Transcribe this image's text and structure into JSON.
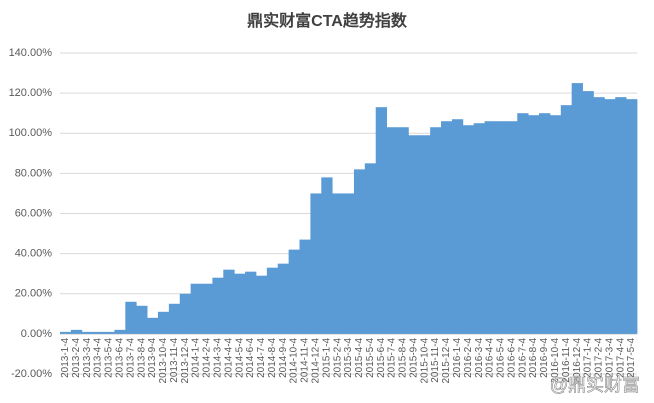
{
  "chart_data": {
    "type": "bar",
    "title": "鼎实财富CTA趋势指数",
    "watermark": "@鼎实财富",
    "categories": [
      "2013-1-4",
      "2013-2-4",
      "2013-3-4",
      "2013-4-4",
      "2013-5-4",
      "2013-6-4",
      "2013-7-4",
      "2013-8-4",
      "2013-9-4",
      "2013-10-4",
      "2013-11-4",
      "2013-12-4",
      "2014-1-4",
      "2014-2-4",
      "2014-3-4",
      "2014-4-4",
      "2014-5-4",
      "2014-6-4",
      "2014-7-4",
      "2014-8-4",
      "2014-9-4",
      "2014-10-4",
      "2014-11-4",
      "2014-12-4",
      "2015-1-4",
      "2015-2-4",
      "2015-3-4",
      "2015-4-4",
      "2015-5-4",
      "2015-6-4",
      "2015-7-4",
      "2015-8-4",
      "2015-9-4",
      "2015-10-4",
      "2015-11-4",
      "2015-12-4",
      "2016-1-4",
      "2016-2-4",
      "2016-3-4",
      "2016-4-4",
      "2016-5-4",
      "2016-6-4",
      "2016-7-4",
      "2016-8-4",
      "2016-9-4",
      "2016-10-4",
      "2016-11-4",
      "2016-12-4",
      "2017-1-4",
      "2017-2-4",
      "2017-3-4",
      "2017-4-4",
      "2017-5-4"
    ],
    "values": [
      1,
      2,
      1,
      1,
      1,
      2,
      16,
      14,
      8,
      11,
      15,
      20,
      25,
      25,
      28,
      32,
      30,
      31,
      29,
      33,
      35,
      42,
      47,
      70,
      78,
      70,
      70,
      82,
      85,
      113,
      103,
      103,
      99,
      99,
      103,
      106,
      107,
      104,
      105,
      106,
      106,
      106,
      110,
      109,
      110,
      109,
      114,
      125,
      121,
      118,
      117,
      118,
      117
    ],
    "color": "#5b9bd5",
    "ylim": [
      -20,
      140
    ],
    "yticks": [
      {
        "value": -20,
        "label": "-20.00%"
      },
      {
        "value": 0,
        "label": "0.00%"
      },
      {
        "value": 20,
        "label": "20.00%"
      },
      {
        "value": 40,
        "label": "40.00%"
      },
      {
        "value": 60,
        "label": "60.00%"
      },
      {
        "value": 80,
        "label": "80.00%"
      },
      {
        "value": 100,
        "label": "100.00%"
      },
      {
        "value": 120,
        "label": "120.00%"
      },
      {
        "value": 140,
        "label": "140.00%"
      }
    ],
    "grid": true
  }
}
